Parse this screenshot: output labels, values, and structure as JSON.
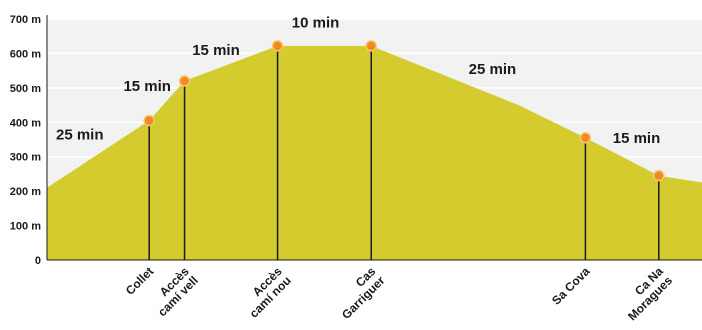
{
  "chart_data": {
    "type": "area",
    "title": "",
    "xlabel": "",
    "ylabel": "",
    "unit": "m",
    "ylim": [
      0,
      700
    ],
    "y_ticks": [
      {
        "value": 0,
        "label": "0"
      },
      {
        "value": 100,
        "label": "100 m"
      },
      {
        "value": 200,
        "label": "200 m"
      },
      {
        "value": 300,
        "label": "300 m"
      },
      {
        "value": 400,
        "label": "400 m"
      },
      {
        "value": 500,
        "label": "500 m"
      },
      {
        "value": 600,
        "label": "600 m"
      },
      {
        "value": 700,
        "label": "700 m"
      }
    ],
    "grid": true,
    "x_range": [
      0,
      100
    ],
    "profile": [
      {
        "x": 0,
        "y": 210
      },
      {
        "x": 15.6,
        "y": 405
      },
      {
        "x": 21.0,
        "y": 520
      },
      {
        "x": 35.2,
        "y": 622
      },
      {
        "x": 49.5,
        "y": 622
      },
      {
        "x": 72.0,
        "y": 450
      },
      {
        "x": 82.2,
        "y": 355
      },
      {
        "x": 93.4,
        "y": 245
      },
      {
        "x": 100,
        "y": 225
      }
    ],
    "waypoints": [
      {
        "x": 15.6,
        "y": 405,
        "lines": [
          "Collet"
        ]
      },
      {
        "x": 21.0,
        "y": 520,
        "lines": [
          "Accès",
          "camí vell"
        ]
      },
      {
        "x": 35.2,
        "y": 622,
        "lines": [
          "Accès",
          "camí nou"
        ]
      },
      {
        "x": 49.5,
        "y": 622,
        "lines": [
          "Cas",
          "Garriguer"
        ]
      },
      {
        "x": 82.2,
        "y": 355,
        "lines": [
          "Sa Cova"
        ]
      },
      {
        "x": 93.4,
        "y": 245,
        "lines": [
          "Ca Na",
          "Moragues"
        ]
      }
    ],
    "segments": [
      {
        "label": "25 min",
        "x": 5.0,
        "y": 365
      },
      {
        "label": "15 min",
        "x": 15.3,
        "y": 505
      },
      {
        "label": "15 min",
        "x": 25.8,
        "y": 610
      },
      {
        "label": "10 min",
        "x": 41.0,
        "y": 690
      },
      {
        "label": "25 min",
        "x": 68.0,
        "y": 555
      },
      {
        "label": "15 min",
        "x": 90.0,
        "y": 355
      }
    ],
    "colors": {
      "area": "#d4cb2e",
      "background": "#f2f2f2",
      "grid": "#ffffff",
      "stems": "#1a1a1a",
      "marker_fill": "#f08a24",
      "marker_stroke": "#f7c770"
    }
  }
}
